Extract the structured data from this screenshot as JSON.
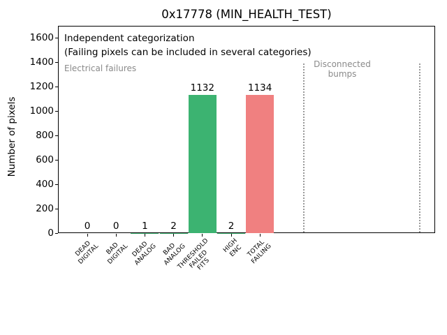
{
  "chart_data": {
    "type": "bar",
    "title": "0x17778 (MIN_HEALTH_TEST)",
    "xlabel": "",
    "ylabel": "Number of pixels",
    "ylim": [
      0,
      1700
    ],
    "yticks": [
      0,
      200,
      400,
      600,
      800,
      1000,
      1200,
      1400,
      1600
    ],
    "grid": false,
    "legend": null,
    "categories": [
      [
        "DEAD",
        "DIGITAL"
      ],
      [
        "BAD",
        "DIGITAL"
      ],
      [
        "DEAD",
        "ANALOG"
      ],
      [
        "BAD",
        "ANALOG"
      ],
      [
        "THRESHOLD",
        "FAILED",
        "FITS"
      ],
      [
        "HIGH",
        "ENC"
      ],
      [
        "TOTAL",
        "FAILING"
      ]
    ],
    "values": [
      0,
      0,
      1,
      2,
      1132,
      2,
      1134
    ],
    "value_labels": [
      "0",
      "0",
      "1",
      "2",
      "1132",
      "2",
      "1134"
    ],
    "bar_colors": [
      "#3cb371",
      "#3cb371",
      "#3cb371",
      "#3cb371",
      "#3cb371",
      "#3cb371",
      "#f08080"
    ],
    "colors": {
      "highlight_green": "#3cb371",
      "highlight_red": "#f08080",
      "gray_text": "#8a8a8a",
      "separator_gray": "#999999",
      "axis_black": "#000000"
    },
    "annotations": {
      "independent": "Independent categorization",
      "note": "(Failing pixels can be included in several categories)",
      "left_region": "Electrical failures",
      "right_region": "Disconnected\nbumps"
    }
  }
}
